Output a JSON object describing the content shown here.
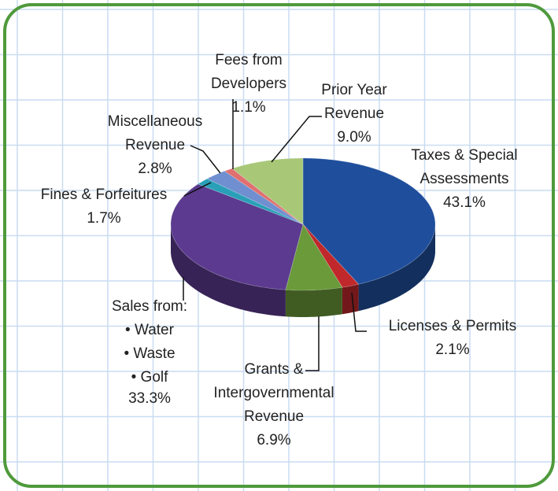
{
  "chart_data": {
    "type": "pie",
    "categories": [
      "Taxes & Special\nAssessments",
      "Licenses & Permits",
      "Grants &\nIntergovernmental\nRevenue",
      "Sales from:\n• Water\n• Waste\n• Golf",
      "Fines & Forfeitures",
      "Miscellaneous\nRevenue",
      "Fees from\nDevelopers",
      "Prior Year\nRevenue"
    ],
    "values": [
      43.1,
      2.1,
      6.9,
      33.3,
      1.7,
      2.8,
      1.1,
      9.0
    ],
    "value_labels": [
      "43.1%",
      "2.1%",
      "6.9%",
      "33.3%",
      "1.7%",
      "2.8%",
      "1.1%",
      "9.0%"
    ],
    "colors": [
      "#1f4e9c",
      "#c0282b",
      "#6a9a3a",
      "#5b3a8f",
      "#2aa0b8",
      "#6f8fd0",
      "#e07070",
      "#a8c878"
    ]
  }
}
